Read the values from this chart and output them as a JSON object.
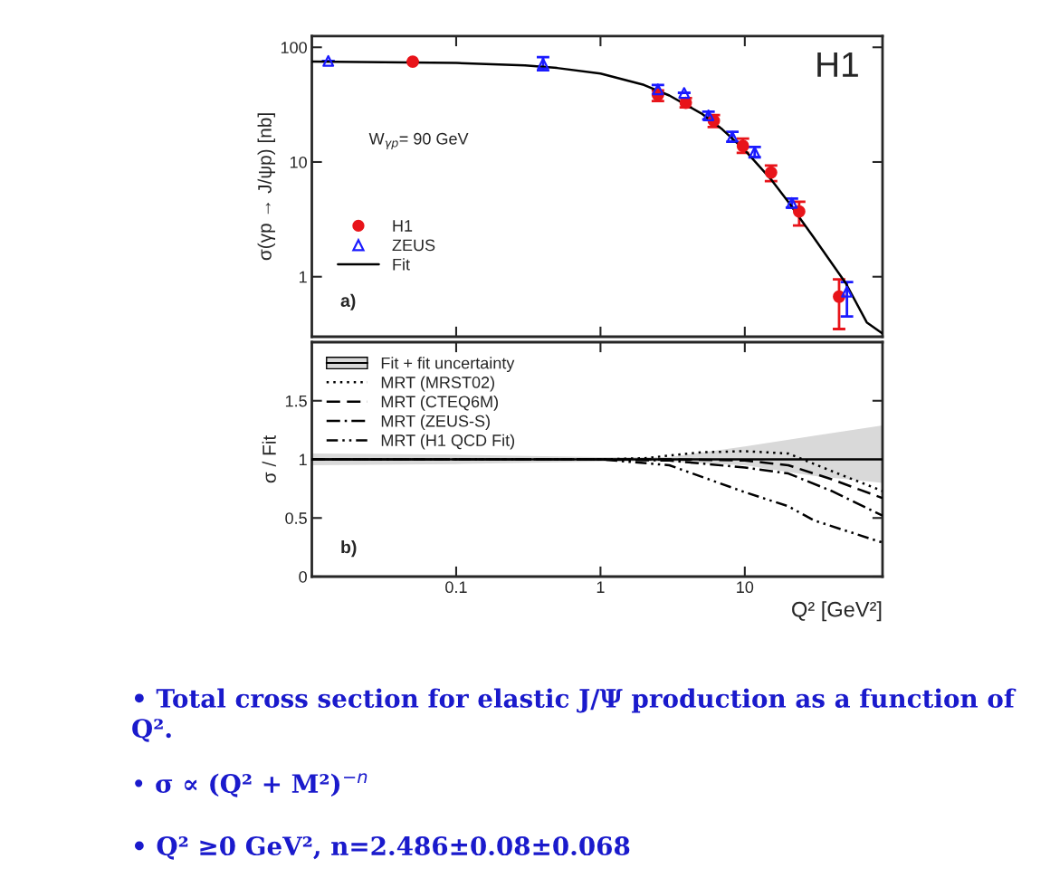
{
  "chart_data": [
    {
      "type": "scatter",
      "title": "H1",
      "ylabel": "σ(γp → J/ψp) [nb]",
      "log": "xy",
      "xlim": [
        0.01,
        90
      ],
      "xticks": [
        0.1,
        1,
        10
      ],
      "ylim": [
        0.3,
        125
      ],
      "yticks": [
        1,
        10,
        100
      ],
      "tick_labels": "y",
      "legend": "left",
      "grid": false,
      "annotations": [
        "W$_{γp}$= 90 GeV",
        "a)"
      ],
      "series": [
        {
          "name": "H1",
          "marker": "circle",
          "color": "#e8141a",
          "x": [
            0.05,
            2.5,
            3.9,
            6.1,
            9.7,
            15.2,
            23.8,
            45
          ],
          "values": [
            75,
            38.5,
            32.8,
            22.9,
            13.8,
            8.1,
            3.7,
            0.67
          ],
          "errors": [
            null,
            [
              34,
              42
            ],
            [
              30,
              36
            ],
            [
              20.2,
              25.7
            ],
            [
              12,
              16
            ],
            [
              6.8,
              9.3
            ],
            [
              2.8,
              4.5
            ],
            [
              0.35,
              0.95
            ]
          ]
        },
        {
          "name": "ZEUS",
          "marker": "triangle",
          "color": "#1a1aff",
          "x": [
            0.013,
            0.4,
            2.5,
            3.8,
            5.6,
            8.2,
            11.7,
            21.2,
            51
          ],
          "values": [
            76,
            72,
            43,
            40,
            25.5,
            16.6,
            12.2,
            4.4,
            0.74
          ],
          "errors": [
            null,
            [
              63,
              82
            ],
            [
              39,
              47
            ],
            null,
            [
              23.5,
              27.5
            ],
            [
              15,
              18.3
            ],
            [
              11,
              13.5
            ],
            [
              4,
              4.8
            ],
            [
              0.45,
              0.9
            ]
          ]
        },
        {
          "name": "Fit",
          "type": "line",
          "line_style": "solid",
          "color": "#000000",
          "x": [
            0.01,
            0.1,
            0.3,
            0.5,
            1,
            2,
            3,
            5,
            7,
            10,
            15,
            20,
            30,
            50,
            70,
            90
          ],
          "values": [
            75,
            73,
            69.5,
            66,
            59,
            47,
            38,
            26.5,
            19.2,
            12.7,
            7.2,
            4.5,
            2.2,
            0.88,
            0.4,
            0.32
          ]
        }
      ]
    },
    {
      "type": "line",
      "ylabel": "σ / Fit",
      "xlabel": "Q² [GeV²]",
      "log": "x",
      "xlim": [
        0.01,
        90
      ],
      "xticks": [
        0.1,
        1,
        10
      ],
      "ylim": [
        0,
        2
      ],
      "yticks": [
        0,
        0.5,
        1,
        1.5
      ],
      "legend": "top left",
      "grid": false,
      "annotations": [
        "b)",
        "• Total cross section for elastic J/Ψ production as a function of Q².",
        "• σ ∝ (Q² + M²)$^{−n}$",
        "• Q² ≥0 GeV², n=2.486±0.08±0.068"
      ],
      "series": [
        {
          "name": "Fit + fit uncertainty",
          "line_style": "solid",
          "color": "#000000",
          "x": [
            0.01,
            0.1,
            1,
            3,
            10,
            30,
            90
          ],
          "values": [
            1,
            1,
            1,
            1,
            1,
            1,
            1
          ],
          "lower": [
            0.95,
            0.96,
            0.98,
            0.98,
            0.95,
            0.86,
            0.8
          ],
          "upper": [
            1.05,
            1.04,
            1.02,
            1.02,
            1.11,
            1.2,
            1.29
          ]
        },
        {
          "name": "MRT (MRST02)",
          "line_style": "dotted",
          "color": "#000000",
          "x": [
            0.01,
            1,
            2,
            5,
            10,
            20,
            40,
            90
          ],
          "values": [
            1,
            1,
            1.01,
            1.06,
            1.07,
            1.05,
            0.9,
            0.73
          ]
        },
        {
          "name": "MRT (CTEQ6M)",
          "line_style": "dashed",
          "color": "#000000",
          "x": [
            0.01,
            3,
            10,
            20,
            40,
            90
          ],
          "values": [
            1,
            1,
            0.99,
            0.95,
            0.83,
            0.67
          ]
        },
        {
          "name": "MRT (ZEUS-S)",
          "line_style": "dashdot",
          "color": "#000000",
          "x": [
            0.01,
            1,
            3,
            10,
            20,
            40,
            90
          ],
          "values": [
            1,
            1,
            0.99,
            0.93,
            0.88,
            0.73,
            0.52
          ]
        },
        {
          "name": "MRT (H1 QCD Fit)",
          "line_style": "dashdotdot",
          "color": "#000000",
          "x": [
            0.01,
            1,
            3,
            10,
            20,
            30,
            90
          ],
          "values": [
            1,
            1,
            0.95,
            0.72,
            0.6,
            0.48,
            0.29
          ]
        }
      ]
    }
  ]
}
